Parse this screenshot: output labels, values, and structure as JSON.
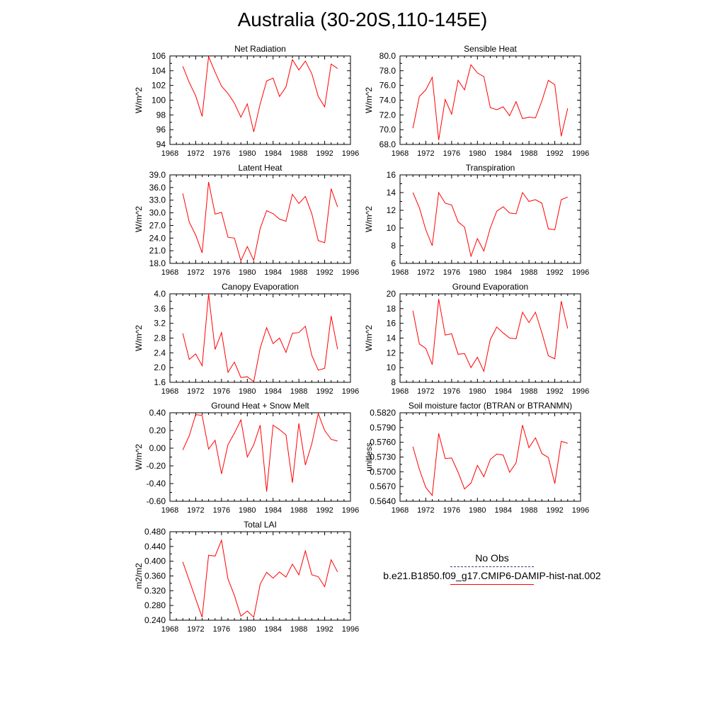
{
  "title": "Australia (30-20S,110-145E)",
  "legend": [
    {
      "label": "No Obs",
      "color": "#3a3a7a",
      "style": "dashed"
    },
    {
      "label": "b.e21.B1850.f09_g17.CMIP6-DAMIP-hist-nat.002",
      "color": "#ff0000",
      "style": "solid"
    }
  ],
  "chart_data": [
    {
      "type": "line",
      "title": "Net Radiation",
      "xlabel": "",
      "ylabel": "W/m^2",
      "xlim": [
        1968,
        1996
      ],
      "ylim": [
        94,
        106
      ],
      "grid": false,
      "xticks": [
        "1968",
        "1972",
        "1976",
        "1980",
        "1984",
        "1988",
        "1992",
        "1996"
      ],
      "yticks": [
        "94",
        "96",
        "98",
        "100",
        "102",
        "104",
        "106"
      ],
      "series": [
        {
          "color": "#ff0000",
          "x": [
            1970,
            1971,
            1972,
            1973,
            1974,
            1975,
            1976,
            1977,
            1978,
            1979,
            1980,
            1981,
            1982,
            1983,
            1984,
            1985,
            1986,
            1987,
            1988,
            1989,
            1990,
            1991,
            1992,
            1993,
            1994
          ],
          "values": [
            104.6,
            102.4,
            100.6,
            97.8,
            105.9,
            103.8,
            101.9,
            100.9,
            99.6,
            97.7,
            99.5,
            95.7,
            99.5,
            102.6,
            103.0,
            100.5,
            101.8,
            105.5,
            104.1,
            105.3,
            103.6,
            100.5,
            99.1,
            104.9,
            104.3
          ]
        }
      ]
    },
    {
      "type": "line",
      "title": "Sensible Heat",
      "xlabel": "",
      "ylabel": "W/m^2",
      "xlim": [
        1968,
        1996
      ],
      "ylim": [
        68,
        80
      ],
      "grid": false,
      "xticks": [
        "1968",
        "1972",
        "1976",
        "1980",
        "1984",
        "1988",
        "1992",
        "1996"
      ],
      "yticks": [
        "68.0",
        "70.0",
        "72.0",
        "74.0",
        "76.0",
        "78.0",
        "80.0"
      ],
      "series": [
        {
          "color": "#ff0000",
          "x": [
            1970,
            1971,
            1972,
            1973,
            1974,
            1975,
            1976,
            1977,
            1978,
            1979,
            1980,
            1981,
            1982,
            1983,
            1984,
            1985,
            1986,
            1987,
            1988,
            1989,
            1990,
            1991,
            1992,
            1993,
            1994
          ],
          "values": [
            70.2,
            74.5,
            75.4,
            77.1,
            68.6,
            74.1,
            72.1,
            76.7,
            75.4,
            78.8,
            77.7,
            77.2,
            73.0,
            72.7,
            73.1,
            71.9,
            73.8,
            71.5,
            71.7,
            71.6,
            73.9,
            76.7,
            76.1,
            69.1,
            72.9
          ]
        }
      ]
    },
    {
      "type": "line",
      "title": "Latent Heat",
      "xlabel": "",
      "ylabel": "W/m^2",
      "xlim": [
        1968,
        1996
      ],
      "ylim": [
        18,
        39
      ],
      "grid": false,
      "xticks": [
        "1968",
        "1972",
        "1976",
        "1980",
        "1984",
        "1988",
        "1992",
        "1996"
      ],
      "yticks": [
        "18.0",
        "21.0",
        "24.0",
        "27.0",
        "30.0",
        "33.0",
        "36.0",
        "39.0"
      ],
      "series": [
        {
          "color": "#ff0000",
          "x": [
            1970,
            1971,
            1972,
            1973,
            1974,
            1975,
            1976,
            1977,
            1978,
            1979,
            1980,
            1981,
            1982,
            1983,
            1984,
            1985,
            1986,
            1987,
            1988,
            1989,
            1990,
            1991,
            1992,
            1993,
            1994
          ],
          "values": [
            34.6,
            27.8,
            24.7,
            20.5,
            37.3,
            29.7,
            30.1,
            24.2,
            24.0,
            18.6,
            22.0,
            18.7,
            26.3,
            30.5,
            29.8,
            28.5,
            28.0,
            34.4,
            32.2,
            33.9,
            29.8,
            23.4,
            22.9,
            35.7,
            31.4
          ]
        }
      ]
    },
    {
      "type": "line",
      "title": "Transpiration",
      "xlabel": "",
      "ylabel": "W/m^2",
      "xlim": [
        1968,
        1996
      ],
      "ylim": [
        6,
        16
      ],
      "grid": false,
      "xticks": [
        "1968",
        "1972",
        "1976",
        "1980",
        "1984",
        "1988",
        "1992",
        "1996"
      ],
      "yticks": [
        "6",
        "8",
        "10",
        "12",
        "14",
        "16"
      ],
      "series": [
        {
          "color": "#ff0000",
          "x": [
            1970,
            1971,
            1972,
            1973,
            1974,
            1975,
            1976,
            1977,
            1978,
            1979,
            1980,
            1981,
            1982,
            1983,
            1984,
            1985,
            1986,
            1987,
            1988,
            1989,
            1990,
            1991,
            1992,
            1993,
            1994
          ],
          "values": [
            14.0,
            12.3,
            9.8,
            8.0,
            14.0,
            12.8,
            12.6,
            10.7,
            10.1,
            6.8,
            8.8,
            7.4,
            10.0,
            11.9,
            12.4,
            11.7,
            11.6,
            14.0,
            13.0,
            13.2,
            12.8,
            9.9,
            9.8,
            13.2,
            13.5
          ]
        }
      ]
    },
    {
      "type": "line",
      "title": "Canopy Evaporation",
      "xlabel": "",
      "ylabel": "W/m^2",
      "xlim": [
        1968,
        1996
      ],
      "ylim": [
        1.6,
        4.0
      ],
      "grid": false,
      "xticks": [
        "1968",
        "1972",
        "1976",
        "1980",
        "1984",
        "1988",
        "1992",
        "1996"
      ],
      "yticks": [
        "1.6",
        "2.0",
        "2.4",
        "2.8",
        "3.2",
        "3.6",
        "4.0"
      ],
      "series": [
        {
          "color": "#ff0000",
          "x": [
            1970,
            1971,
            1972,
            1973,
            1974,
            1975,
            1976,
            1977,
            1978,
            1979,
            1980,
            1981,
            1982,
            1983,
            1984,
            1985,
            1986,
            1987,
            1988,
            1989,
            1990,
            1991,
            1992,
            1993,
            1994
          ],
          "values": [
            2.93,
            2.22,
            2.37,
            2.05,
            4.0,
            2.49,
            2.95,
            1.87,
            2.15,
            1.73,
            1.75,
            1.62,
            2.53,
            3.08,
            2.65,
            2.8,
            2.41,
            2.93,
            2.95,
            3.12,
            2.33,
            1.93,
            1.98,
            3.4,
            2.5
          ]
        }
      ]
    },
    {
      "type": "line",
      "title": "Ground Evaporation",
      "xlabel": "",
      "ylabel": "W/m^2",
      "xlim": [
        1968,
        1996
      ],
      "ylim": [
        8,
        20
      ],
      "grid": false,
      "xticks": [
        "1968",
        "1972",
        "1976",
        "1980",
        "1984",
        "1988",
        "1992",
        "1996"
      ],
      "yticks": [
        "8",
        "10",
        "12",
        "14",
        "16",
        "18",
        "20"
      ],
      "series": [
        {
          "color": "#ff0000",
          "x": [
            1970,
            1971,
            1972,
            1973,
            1974,
            1975,
            1976,
            1977,
            1978,
            1979,
            1980,
            1981,
            1982,
            1983,
            1984,
            1985,
            1986,
            1987,
            1988,
            1989,
            1990,
            1991,
            1992,
            1993,
            1994
          ],
          "values": [
            17.7,
            13.2,
            12.6,
            10.4,
            19.3,
            14.4,
            14.6,
            11.8,
            11.9,
            10.0,
            11.4,
            9.5,
            13.8,
            15.5,
            14.7,
            14.0,
            13.9,
            17.5,
            16.1,
            17.5,
            14.7,
            11.6,
            11.2,
            19.0,
            15.3
          ]
        }
      ]
    },
    {
      "type": "line",
      "title": "Ground Heat + Snow Melt",
      "xlabel": "",
      "ylabel": "W/m^2",
      "xlim": [
        1968,
        1996
      ],
      "ylim": [
        -0.6,
        0.4
      ],
      "grid": false,
      "xticks": [
        "1968",
        "1972",
        "1976",
        "1980",
        "1984",
        "1988",
        "1992",
        "1996"
      ],
      "yticks": [
        "-0.60",
        "-0.40",
        "-0.20",
        "0.00",
        "0.20",
        "0.40"
      ],
      "series": [
        {
          "color": "#ff0000",
          "x": [
            1970,
            1971,
            1972,
            1973,
            1974,
            1975,
            1976,
            1977,
            1978,
            1979,
            1980,
            1981,
            1982,
            1983,
            1984,
            1985,
            1986,
            1987,
            1988,
            1989,
            1990,
            1991,
            1992,
            1993,
            1994
          ],
          "values": [
            -0.02,
            0.14,
            0.38,
            0.37,
            -0.01,
            0.09,
            -0.29,
            0.04,
            0.17,
            0.32,
            -0.1,
            0.04,
            0.26,
            -0.49,
            0.26,
            0.21,
            0.15,
            -0.39,
            0.28,
            -0.19,
            0.05,
            0.39,
            0.2,
            0.1,
            0.08
          ]
        }
      ]
    },
    {
      "type": "line",
      "title": "Soil moisture factor (BTRAN or BTRANMN)",
      "xlabel": "",
      "ylabel": "unitless",
      "xlim": [
        1968,
        1996
      ],
      "ylim": [
        0.564,
        0.582
      ],
      "grid": false,
      "xticks": [
        "1968",
        "1972",
        "1976",
        "1980",
        "1984",
        "1988",
        "1992",
        "1996"
      ],
      "yticks": [
        "0.5640",
        "0.5670",
        "0.5700",
        "0.5730",
        "0.5760",
        "0.5790",
        "0.5820"
      ],
      "series": [
        {
          "color": "#ff0000",
          "x": [
            1970,
            1971,
            1972,
            1973,
            1974,
            1975,
            1976,
            1977,
            1978,
            1979,
            1980,
            1981,
            1982,
            1983,
            1984,
            1985,
            1986,
            1987,
            1988,
            1989,
            1990,
            1991,
            1992,
            1993,
            1994
          ],
          "values": [
            0.5751,
            0.5705,
            0.5668,
            0.5652,
            0.5778,
            0.5727,
            0.5728,
            0.5699,
            0.5665,
            0.5677,
            0.5713,
            0.569,
            0.5725,
            0.5736,
            0.5734,
            0.5699,
            0.5718,
            0.5795,
            0.5749,
            0.5769,
            0.5737,
            0.5729,
            0.5676,
            0.5762,
            0.5758
          ]
        }
      ]
    },
    {
      "type": "line",
      "title": "Total LAI",
      "xlabel": "",
      "ylabel": "m2/m2",
      "xlim": [
        1968,
        1996
      ],
      "ylim": [
        0.24,
        0.48
      ],
      "grid": false,
      "xticks": [
        "1968",
        "1972",
        "1976",
        "1980",
        "1984",
        "1988",
        "1992",
        "1996"
      ],
      "yticks": [
        "0.240",
        "0.280",
        "0.320",
        "0.360",
        "0.400",
        "0.440",
        "0.480"
      ],
      "series": [
        {
          "color": "#ff0000",
          "x": [
            1970,
            1971,
            1972,
            1973,
            1974,
            1975,
            1976,
            1977,
            1978,
            1979,
            1980,
            1981,
            1982,
            1983,
            1984,
            1985,
            1986,
            1987,
            1988,
            1989,
            1990,
            1991,
            1992,
            1993,
            1994
          ],
          "values": [
            0.398,
            0.348,
            0.298,
            0.248,
            0.416,
            0.414,
            0.457,
            0.352,
            0.307,
            0.251,
            0.265,
            0.248,
            0.338,
            0.37,
            0.354,
            0.371,
            0.357,
            0.392,
            0.363,
            0.428,
            0.363,
            0.358,
            0.331,
            0.404,
            0.371
          ]
        }
      ]
    }
  ]
}
